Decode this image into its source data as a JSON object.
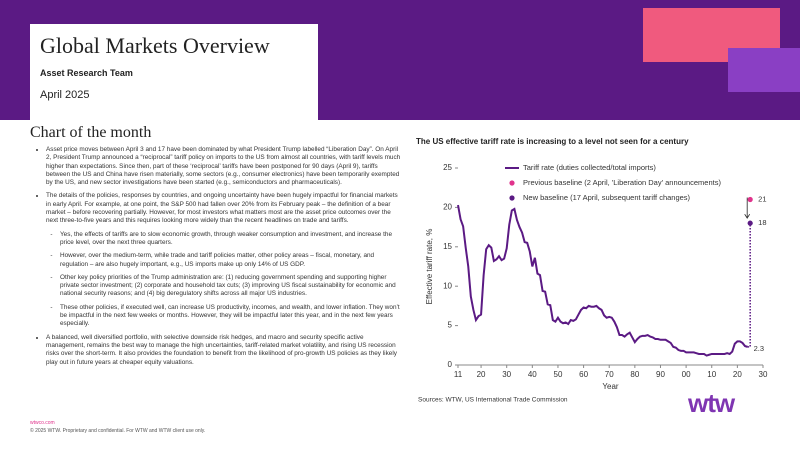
{
  "header": {
    "title": "Global Markets Overview",
    "team": "Asset Research Team",
    "date": "April 2025"
  },
  "section_title": "Chart of the month",
  "bullets": [
    {
      "text": "Asset price moves between April 3 and 17 have been dominated by what President Trump labelled “Liberation Day”. On April 2, President Trump announced a “reciprocal” tariff policy on imports to the US from almost all countries, with tariff levels much higher than expectations. Since then, part of these ‘reciprocal’ tariffs have been postponed for 90 days (April 9), tariffs between the US and China have risen materially, some sectors (e.g., consumer electronics) have been temporarily exempted by the US, and new sector investigations have been started (e.g., semiconductors and pharmaceuticals).",
      "sub": []
    },
    {
      "text": "The details of the policies, responses by countries, and ongoing uncertainty have been hugely impactful for financial markets in early April. For example, at one point, the S&P 500 had fallen over 20% from its February peak – the definition of a bear market – before recovering partially. However, for most investors what matters most are the asset price outcomes over the next three-to-five years and this requires looking more widely than the recent headlines on trade and tariffs.",
      "sub": [
        "Yes, the effects of tariffs are to slow economic growth, through weaker consumption and investment, and increase the price level, over the next three quarters.",
        "However, over the medium-term, while trade and tariff policies matter, other policy areas – fiscal, monetary, and regulation – are also hugely important, e.g., US imports make up only 14% of US GDP.",
        "Other key policy priorities of the Trump administration are: (1) reducing government spending and supporting higher private sector investment; (2) corporate and household tax cuts; (3) improving US fiscal sustainability for economic and national security reasons; and (4) big deregulatory shifts across all major US industries.",
        "These other policies, if executed well, can increase US productivity, incomes, and wealth, and lower inflation. They won’t be impactful in the next few weeks or months. However, they will be impactful later this year, and in the next few years especially."
      ]
    },
    {
      "text": "A balanced, well diversified portfolio, with selective downside risk hedges, and macro and security specific active management, remains the best way to manage the high uncertainties, tariff-related market volatility, and rising US recession risks over the short-term. It also provides the foundation to benefit from the likelihood of pro-growth US policies as they likely play out in future years at cheaper equity valuations.",
      "sub": []
    }
  ],
  "footer": {
    "url": "wtwco.com",
    "copyright": "© 2025 WTW. Proprietary and confidential. For WTW and WTW client use only.",
    "logo": "wtw"
  },
  "chart_data": {
    "type": "line",
    "title": "The US effective tariff rate is increasing to a level not seen for a century",
    "x_label": "Year",
    "y_label": "Effective tariff rate, %",
    "source": "Sources: WTW, US International Trade Commission",
    "xlim": [
      1911,
      2030
    ],
    "xticks": [
      {
        "value": 1911,
        "label": "11"
      },
      {
        "value": 1920,
        "label": "20"
      },
      {
        "value": 1930,
        "label": "30"
      },
      {
        "value": 1940,
        "label": "40"
      },
      {
        "value": 1950,
        "label": "50"
      },
      {
        "value": 1960,
        "label": "60"
      },
      {
        "value": 1970,
        "label": "70"
      },
      {
        "value": 1980,
        "label": "80"
      },
      {
        "value": 1990,
        "label": "90"
      },
      {
        "value": 2000,
        "label": "00"
      },
      {
        "value": 2010,
        "label": "10"
      },
      {
        "value": 2020,
        "label": "20"
      },
      {
        "value": 2030,
        "label": "30"
      }
    ],
    "ylim": [
      0,
      25
    ],
    "yticks": [
      0,
      5,
      10,
      15,
      20,
      25
    ],
    "legend": "top-left",
    "series": [
      {
        "name": "Tariff rate (duties collected/total imports)",
        "color": "#5b1a84",
        "style": "line",
        "x": [
          1911,
          1912,
          1913,
          1914,
          1915,
          1916,
          1917,
          1918,
          1919,
          1920,
          1921,
          1922,
          1923,
          1924,
          1925,
          1926,
          1927,
          1928,
          1929,
          1930,
          1931,
          1932,
          1933,
          1934,
          1935,
          1936,
          1937,
          1938,
          1939,
          1940,
          1941,
          1942,
          1943,
          1944,
          1945,
          1946,
          1947,
          1948,
          1949,
          1950,
          1951,
          1952,
          1953,
          1954,
          1955,
          1956,
          1957,
          1958,
          1959,
          1960,
          1961,
          1962,
          1963,
          1964,
          1965,
          1966,
          1967,
          1968,
          1969,
          1970,
          1971,
          1972,
          1973,
          1974,
          1975,
          1976,
          1977,
          1978,
          1979,
          1980,
          1981,
          1982,
          1983,
          1984,
          1985,
          1986,
          1987,
          1988,
          1989,
          1990,
          1991,
          1992,
          1993,
          1994,
          1995,
          1996,
          1997,
          1998,
          1999,
          2000,
          2001,
          2002,
          2003,
          2004,
          2005,
          2006,
          2007,
          2008,
          2009,
          2010,
          2011,
          2012,
          2013,
          2014,
          2015,
          2016,
          2017,
          2018,
          2019,
          2020,
          2021,
          2022,
          2023,
          2024
        ],
        "values": [
          20.3,
          18.5,
          17.6,
          14.9,
          12.5,
          8.7,
          7.0,
          5.7,
          6.2,
          6.4,
          11.4,
          14.7,
          15.2,
          14.9,
          13.2,
          13.4,
          13.8,
          13.3,
          13.5,
          14.8,
          17.8,
          19.6,
          19.8,
          18.4,
          17.5,
          16.8,
          15.6,
          15.5,
          14.4,
          12.5,
          13.6,
          11.6,
          11.4,
          9.4,
          9.3,
          7.7,
          7.6,
          5.7,
          5.5,
          6.0,
          5.5,
          5.3,
          5.4,
          5.2,
          5.7,
          5.6,
          5.8,
          6.4,
          7.0,
          7.3,
          7.2,
          7.5,
          7.4,
          7.4,
          7.5,
          7.2,
          7.0,
          6.3,
          6.0,
          6.1,
          6.0,
          5.5,
          4.8,
          3.8,
          3.8,
          3.6,
          3.9,
          4.1,
          3.5,
          2.9,
          3.3,
          3.6,
          3.7,
          3.7,
          3.8,
          3.6,
          3.5,
          3.3,
          3.3,
          3.2,
          3.2,
          3.2,
          3.0,
          2.8,
          2.3,
          2.2,
          1.9,
          1.8,
          1.8,
          1.6,
          1.6,
          1.6,
          1.6,
          1.5,
          1.4,
          1.4,
          1.4,
          1.2,
          1.3,
          1.4,
          1.4,
          1.4,
          1.4,
          1.4,
          1.4,
          1.5,
          1.4,
          1.7,
          2.7,
          3.0,
          3.0,
          2.8,
          2.4,
          2.3
        ]
      },
      {
        "name": "Previous baseline (2 April, 'Liberation Day' announcements)",
        "color": "#e0338c",
        "style": "dot",
        "x": [
          2025
        ],
        "values": [
          21
        ]
      },
      {
        "name": "New baseline (17 April, subsequent tariff changes)",
        "color": "#5b1a84",
        "style": "dot",
        "x": [
          2025
        ],
        "values": [
          18
        ]
      }
    ]
  }
}
